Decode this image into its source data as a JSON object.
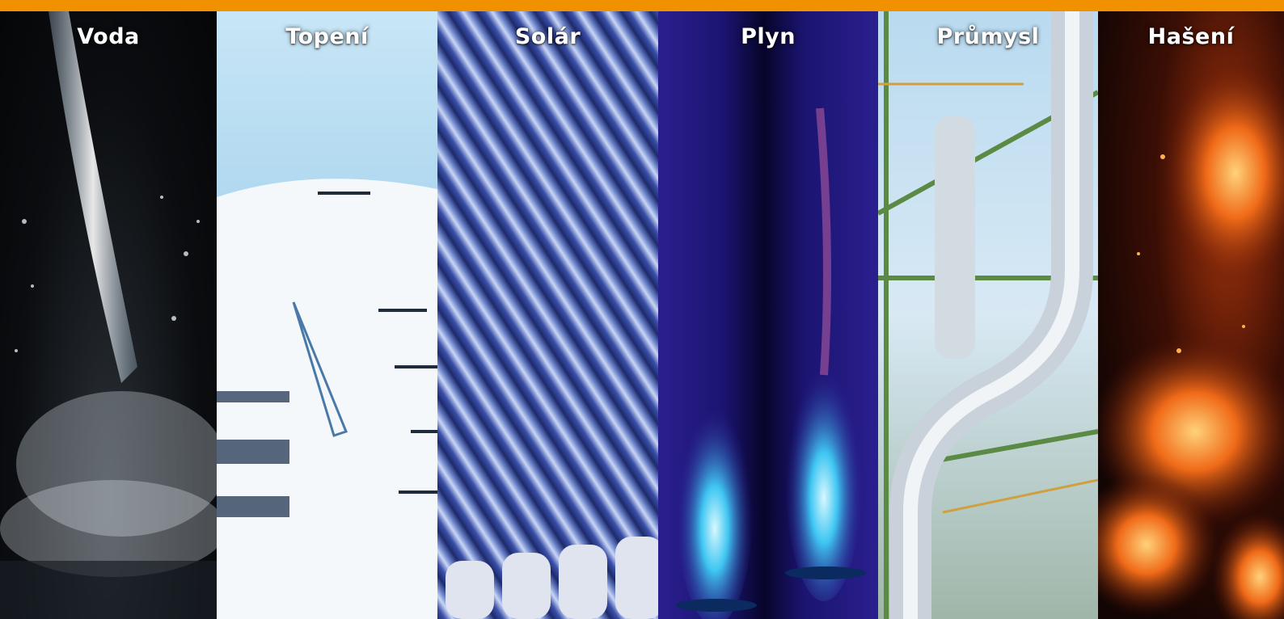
{
  "panels": [
    {
      "label": "Voda"
    },
    {
      "label": "Topení"
    },
    {
      "label": "Solár"
    },
    {
      "label": "Plyn"
    },
    {
      "label": "Průmysl"
    },
    {
      "label": "Hašení"
    }
  ]
}
